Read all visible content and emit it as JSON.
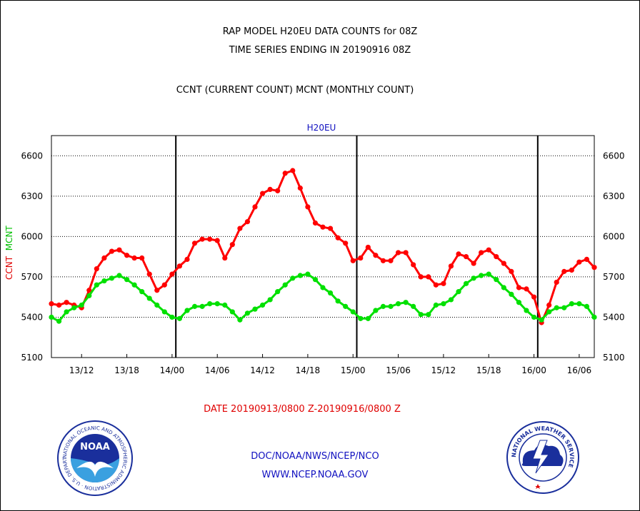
{
  "header": {
    "title_line1": "RAP MODEL H20EU DATA COUNTS for 08Z",
    "title_line2": "TIME SERIES ENDING IN 20190916 08Z",
    "subtitle": "CCNT (CURRENT COUNT) MCNT (MONTHLY COUNT)"
  },
  "footer": {
    "date_range": "DATE 20190913/0800 Z-20190916/0800 Z",
    "org": "DOC/NOAA/NWS/NCEP/NCO",
    "url": "WWW.NCEP.NOAA.GOV"
  },
  "logos": {
    "left_icon": "noaa-logo",
    "left_text": "NOAA",
    "left_ring": "NATIONAL OCEANIC AND ATMOSPHERIC ADMINISTRATION · U.S. DEPARTMENT OF COMMERCE",
    "right_icon": "nws-logo",
    "right_ring": "NATIONAL WEATHER SERVICE"
  },
  "chart_data": {
    "type": "line",
    "station_label": "H20EU",
    "ylabel_ccnt": "CCNT",
    "ylabel_mcnt": "MCNT",
    "ylim": [
      5100,
      6750
    ],
    "yticks": [
      5100,
      5400,
      5700,
      6000,
      6300,
      6600
    ],
    "xrange_hours": [
      0,
      72
    ],
    "x_tick_labels": [
      "13/12",
      "13/18",
      "14/00",
      "14/06",
      "14/12",
      "14/18",
      "15/00",
      "15/06",
      "15/12",
      "15/18",
      "16/00",
      "16/06"
    ],
    "x_tick_hours": [
      4,
      10,
      16,
      22,
      28,
      34,
      40,
      46,
      52,
      58,
      64,
      70
    ],
    "day_divider_hours": [
      16.5,
      40.5,
      64.5
    ],
    "grid": "horizontal dotted",
    "colors": {
      "ccnt": "#ff0000",
      "mcnt": "#00e000"
    },
    "series": [
      {
        "name": "CCNT",
        "color": "#ff0000",
        "x": [
          0,
          1,
          2,
          3,
          4,
          5,
          6,
          7,
          8,
          9,
          10,
          11,
          12,
          13,
          14,
          15,
          16,
          17,
          18,
          19,
          20,
          21,
          22,
          23,
          24,
          25,
          26,
          27,
          28,
          29,
          30,
          31,
          32,
          33,
          34,
          35,
          36,
          37,
          38,
          39,
          40,
          41,
          42,
          43,
          44,
          45,
          46,
          47,
          48,
          49,
          50,
          51,
          52,
          53,
          54,
          55,
          56,
          57,
          58,
          59,
          60,
          61,
          62,
          63,
          64,
          65,
          66,
          67,
          68,
          69,
          70,
          71,
          72
        ],
        "values": [
          5500,
          5490,
          5510,
          5490,
          5470,
          5600,
          5760,
          5840,
          5890,
          5900,
          5860,
          5840,
          5840,
          5720,
          5600,
          5640,
          5720,
          5780,
          5830,
          5950,
          5980,
          5980,
          5970,
          5840,
          5940,
          6060,
          6110,
          6220,
          6320,
          6350,
          6340,
          6470,
          6490,
          6360,
          6220,
          6100,
          6070,
          6060,
          5990,
          5950,
          5820,
          5840,
          5920,
          5860,
          5820,
          5820,
          5880,
          5880,
          5790,
          5700,
          5700,
          5640,
          5650,
          5780,
          5870,
          5850,
          5800,
          5880,
          5900,
          5850,
          5800,
          5740,
          5620,
          5610,
          5550,
          5360,
          5490,
          5660,
          5740,
          5750,
          5810,
          5830,
          5770
        ]
      },
      {
        "name": "MCNT",
        "color": "#00e000",
        "x": [
          0,
          1,
          2,
          3,
          4,
          5,
          6,
          7,
          8,
          9,
          10,
          11,
          12,
          13,
          14,
          15,
          16,
          17,
          18,
          19,
          20,
          21,
          22,
          23,
          24,
          25,
          26,
          27,
          28,
          29,
          30,
          31,
          32,
          33,
          34,
          35,
          36,
          37,
          38,
          39,
          40,
          41,
          42,
          43,
          44,
          45,
          46,
          47,
          48,
          49,
          50,
          51,
          52,
          53,
          54,
          55,
          56,
          57,
          58,
          59,
          60,
          61,
          62,
          63,
          64,
          65,
          66,
          67,
          68,
          69,
          70,
          71,
          72
        ],
        "values": [
          5400,
          5370,
          5440,
          5470,
          5490,
          5560,
          5640,
          5670,
          5690,
          5710,
          5680,
          5640,
          5590,
          5540,
          5490,
          5440,
          5400,
          5390,
          5450,
          5480,
          5480,
          5500,
          5500,
          5490,
          5440,
          5380,
          5430,
          5460,
          5490,
          5530,
          5590,
          5640,
          5690,
          5710,
          5720,
          5680,
          5620,
          5580,
          5520,
          5480,
          5440,
          5390,
          5390,
          5450,
          5480,
          5480,
          5500,
          5510,
          5480,
          5420,
          5420,
          5490,
          5500,
          5530,
          5590,
          5650,
          5690,
          5710,
          5720,
          5680,
          5620,
          5570,
          5510,
          5450,
          5400,
          5380,
          5440,
          5470,
          5470,
          5500,
          5500,
          5480,
          5400
        ]
      }
    ]
  }
}
